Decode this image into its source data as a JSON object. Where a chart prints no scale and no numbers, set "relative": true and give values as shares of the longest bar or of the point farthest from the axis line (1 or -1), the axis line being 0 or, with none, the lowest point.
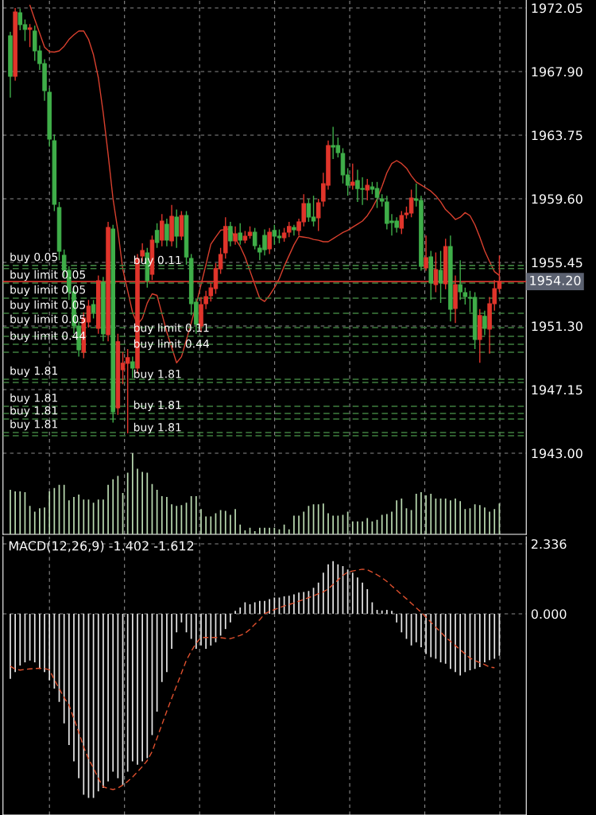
{
  "chart_data": [
    {
      "type": "candlestick",
      "categories": [
        null,
        null,
        null,
        null,
        null,
        null,
        null,
        null,
        null,
        null,
        null,
        null,
        null,
        null,
        null,
        null,
        null,
        null,
        null,
        null,
        null,
        null,
        null,
        null,
        null,
        null,
        null,
        null,
        null,
        null,
        null,
        null,
        null,
        null,
        null,
        null,
        null,
        null,
        null,
        null,
        null,
        null,
        null,
        null,
        null,
        null,
        null,
        null,
        null,
        null,
        null,
        null,
        null,
        null,
        null,
        null,
        null,
        null,
        null,
        null,
        null,
        null,
        null,
        null,
        null,
        null,
        null,
        null,
        null,
        null,
        null,
        null,
        null,
        null,
        null,
        null,
        null,
        null,
        null,
        null,
        null,
        null,
        null,
        null,
        null,
        null,
        null,
        null,
        null,
        null,
        null,
        null,
        null,
        null,
        null,
        null,
        null,
        null,
        null,
        null,
        null
      ],
      "ohlc": [
        [
          1970.23,
          1970.5,
          1966.2,
          1967.59
        ],
        [
          1967.59,
          1972.05,
          1967.3,
          1971.79
        ],
        [
          1971.74,
          1972.0,
          1970.6,
          1970.96
        ],
        [
          1970.96,
          1971.3,
          1969.9,
          1970.65
        ],
        [
          1970.65,
          1971.0,
          1969.5,
          1970.75
        ],
        [
          1970.54,
          1970.9,
          1968.6,
          1969.25
        ],
        [
          1969.25,
          1969.6,
          1968.0,
          1968.42
        ],
        [
          1968.42,
          1968.7,
          1966.0,
          1966.66
        ],
        [
          1966.55,
          1966.8,
          1963.0,
          1963.49
        ],
        [
          1963.39,
          1963.8,
          1958.8,
          1959.24
        ],
        [
          1959.03,
          1959.4,
          1955.6,
          1956.18
        ],
        [
          1955.92,
          1956.3,
          1954.5,
          1954.93
        ],
        [
          1954.93,
          1955.2,
          1953.0,
          1953.53
        ],
        [
          1953.53,
          1953.9,
          1950.8,
          1951.3
        ],
        [
          1951.3,
          1951.6,
          1949.3,
          1949.75
        ],
        [
          1949.59,
          1952.2,
          1949.2,
          1951.82
        ],
        [
          1951.56,
          1953.0,
          1951.2,
          1952.6
        ],
        [
          1952.7,
          1953.0,
          1951.8,
          1952.18
        ],
        [
          1951.15,
          1954.6,
          1950.8,
          1954.26
        ],
        [
          1954.16,
          1954.5,
          1950.3,
          1950.78
        ],
        [
          1950.73,
          1958.1,
          1950.3,
          1957.73
        ],
        [
          1957.63,
          1957.9,
          1945.0,
          1945.7
        ],
        [
          1945.96,
          1950.8,
          1945.5,
          1950.27
        ],
        [
          1948.45,
          1949.6,
          1947.5,
          1948.87
        ],
        [
          1948.87,
          1949.8,
          1944.3,
          1949.23
        ],
        [
          1948.97,
          1949.3,
          1947.9,
          1948.55
        ],
        [
          1948.55,
          1956.0,
          1948.2,
          1955.71
        ],
        [
          1955.87,
          1956.7,
          1955.5,
          1956.23
        ],
        [
          1956.07,
          1956.4,
          1953.8,
          1954.26
        ],
        [
          1954.67,
          1957.2,
          1954.3,
          1956.9
        ],
        [
          1957.53,
          1958.0,
          1956.4,
          1956.75
        ],
        [
          1956.9,
          1958.6,
          1956.5,
          1958.15
        ],
        [
          1957.94,
          1958.3,
          1956.5,
          1956.9
        ],
        [
          1956.85,
          1959.2,
          1956.5,
          1958.46
        ],
        [
          1958.41,
          1958.9,
          1956.4,
          1957.16
        ],
        [
          1957.16,
          1958.8,
          1956.9,
          1958.51
        ],
        [
          1958.51,
          1958.8,
          1955.3,
          1955.81
        ],
        [
          1955.71,
          1956.0,
          1952.0,
          1952.75
        ],
        [
          1952.86,
          1953.1,
          1950.8,
          1951.41
        ],
        [
          1951.3,
          1953.2,
          1950.9,
          1952.7
        ],
        [
          1952.75,
          1953.6,
          1952.4,
          1953.22
        ],
        [
          1953.27,
          1954.1,
          1952.9,
          1953.79
        ],
        [
          1953.74,
          1955.4,
          1953.4,
          1955.04
        ],
        [
          1955.04,
          1956.4,
          1954.7,
          1955.97
        ],
        [
          1956.07,
          1958.4,
          1955.7,
          1957.79
        ],
        [
          1957.79,
          1958.1,
          1956.5,
          1956.85
        ],
        [
          1956.85,
          1957.8,
          1956.6,
          1957.32
        ],
        [
          1957.37,
          1958.0,
          1956.6,
          1956.9
        ],
        [
          1956.9,
          1957.5,
          1956.7,
          1957.16
        ],
        [
          1957.21,
          1957.8,
          1957.0,
          1957.42
        ],
        [
          1957.42,
          1957.7,
          1956.3,
          1956.54
        ],
        [
          1956.38,
          1956.6,
          1955.6,
          1956.13
        ],
        [
          1957.21,
          1957.6,
          1955.9,
          1956.28
        ],
        [
          1956.33,
          1957.7,
          1956.0,
          1957.42
        ],
        [
          1957.53,
          1957.9,
          1956.6,
          1957.16
        ],
        [
          1957.16,
          1957.6,
          1956.7,
          1957.06
        ],
        [
          1957.06,
          1957.7,
          1956.8,
          1957.37
        ],
        [
          1957.42,
          1958.1,
          1957.1,
          1957.79
        ],
        [
          1957.73,
          1957.9,
          1957.2,
          1957.58
        ],
        [
          1957.53,
          1958.3,
          1957.2,
          1958.1
        ],
        [
          1958.1,
          1959.9,
          1957.8,
          1959.29
        ],
        [
          1959.29,
          1959.6,
          1958.1,
          1958.41
        ],
        [
          1958.41,
          1959.8,
          1957.8,
          1958.15
        ],
        [
          1958.36,
          1959.6,
          1957.5,
          1959.34
        ],
        [
          1959.45,
          1961.3,
          1959.1,
          1960.59
        ],
        [
          1960.48,
          1963.4,
          1960.2,
          1963.08
        ],
        [
          1963.08,
          1964.3,
          1962.2,
          1962.97
        ],
        [
          1963.08,
          1963.6,
          1962.3,
          1962.61
        ],
        [
          1962.56,
          1962.9,
          1960.6,
          1961.16
        ],
        [
          1961.16,
          1961.6,
          1959.8,
          1960.48
        ],
        [
          1960.48,
          1961.9,
          1960.2,
          1960.69
        ],
        [
          1960.79,
          1961.5,
          1959.4,
          1960.27
        ],
        [
          1960.27,
          1961.0,
          1959.2,
          1960.22
        ],
        [
          1960.17,
          1960.9,
          1959.5,
          1960.48
        ],
        [
          1960.38,
          1960.7,
          1959.9,
          1960.22
        ],
        [
          1960.27,
          1960.7,
          1959.0,
          1959.7
        ],
        [
          1959.6,
          1959.9,
          1959.1,
          1959.45
        ],
        [
          1959.39,
          1959.8,
          1957.6,
          1957.99
        ],
        [
          1958.15,
          1958.6,
          1957.2,
          1958.05
        ],
        [
          1958.15,
          1958.4,
          1957.4,
          1957.73
        ],
        [
          1957.68,
          1958.8,
          1957.3,
          1958.51
        ],
        [
          1958.57,
          1959.1,
          1958.3,
          1958.67
        ],
        [
          1958.67,
          1960.2,
          1958.4,
          1959.65
        ],
        [
          1959.6,
          1960.6,
          1959.1,
          1959.5
        ],
        [
          1959.5,
          1959.8,
          1954.9,
          1955.19
        ],
        [
          1955.09,
          1957.2,
          1954.9,
          1955.76
        ],
        [
          1955.81,
          1956.2,
          1953.0,
          1954.1
        ],
        [
          1954.0,
          1956.1,
          1953.5,
          1954.98
        ],
        [
          1954.93,
          1956.2,
          1952.8,
          1954.1
        ],
        [
          1954.05,
          1957.0,
          1953.7,
          1956.49
        ],
        [
          1956.49,
          1957.2,
          1951.6,
          1952.39
        ],
        [
          1952.44,
          1954.6,
          1951.5,
          1954.0
        ],
        [
          1954.0,
          1955.6,
          1953.0,
          1953.53
        ],
        [
          1953.48,
          1953.8,
          1952.7,
          1953.22
        ],
        [
          1953.17,
          1953.6,
          1952.2,
          1953.12
        ],
        [
          1953.17,
          1953.5,
          1949.8,
          1950.42
        ],
        [
          1950.42,
          1952.4,
          1948.9,
          1951.98
        ],
        [
          1951.93,
          1952.3,
          1950.7,
          1951.15
        ],
        [
          1951.1,
          1953.2,
          1949.5,
          1952.75
        ],
        [
          1952.75,
          1954.3,
          1952.3,
          1953.74
        ],
        [
          1953.74,
          1955.9,
          1953.5,
          1954.21
        ]
      ],
      "colors": [
        "#3fae49",
        "#e0352b",
        "#3fae49",
        "#3fae49",
        "#e0352b",
        "#3fae49",
        "#3fae49",
        "#3fae49",
        "#3fae49",
        "#3fae49",
        "#3fae49",
        "#3fae49",
        "#3fae49",
        "#3fae49",
        "#3fae49",
        "#e0352b",
        "#e0352b",
        "#3fae49",
        "#e0352b",
        "#3fae49",
        "#e0352b",
        "#3fae49",
        "#e0352b",
        "#e0352b",
        "#e0352b",
        "#3fae49",
        "#e0352b",
        "#e0352b",
        "#3fae49",
        "#e0352b",
        "#3fae49",
        "#e0352b",
        "#3fae49",
        "#e0352b",
        "#3fae49",
        "#e0352b",
        "#3fae49",
        "#3fae49",
        "#3fae49",
        "#e0352b",
        "#e0352b",
        "#e0352b",
        "#e0352b",
        "#e0352b",
        "#e0352b",
        "#3fae49",
        "#e0352b",
        "#3fae49",
        "#e0352b",
        "#e0352b",
        "#3fae49",
        "#3fae49",
        "#3fae49",
        "#e0352b",
        "#3fae49",
        "#3fae49",
        "#e0352b",
        "#e0352b",
        "#3fae49",
        "#e0352b",
        "#e0352b",
        "#3fae49",
        "#3fae49",
        "#e0352b",
        "#e0352b",
        "#e0352b",
        "#3fae49",
        "#3fae49",
        "#3fae49",
        "#3fae49",
        "#e0352b",
        "#3fae49",
        "#3fae49",
        "#e0352b",
        "#3fae49",
        "#3fae49",
        "#3fae49",
        "#3fae49",
        "#3fae49",
        "#3fae49",
        "#e0352b",
        "#e0352b",
        "#e0352b",
        "#3fae49",
        "#3fae49",
        "#e0352b",
        "#3fae49",
        "#e0352b",
        "#3fae49",
        "#e0352b",
        "#3fae49",
        "#e0352b",
        "#3fae49",
        "#3fae49",
        "#3fae49",
        "#3fae49",
        "#e0352b",
        "#3fae49",
        "#e0352b",
        "#e0352b",
        "#e0352b"
      ],
      "series": [
        {
          "type": "line",
          "color": "#d9402e",
          "values": [
            null,
            null,
            null,
            null,
            1972.23,
            1971.3,
            1970.4,
            1969.5,
            1969.2,
            1969.17,
            1969.25,
            1969.55,
            1970.0,
            1970.3,
            1970.55,
            1970.55,
            1970.0,
            1969.0,
            1967.5,
            1965.2,
            1962.5,
            1959.6,
            1957.5,
            1955.0,
            1953.6,
            1952.18,
            1951.4,
            1951.8,
            1952.8,
            1953.4,
            1953.3,
            1952.1,
            1950.9,
            1949.9,
            1948.9,
            1949.3,
            1950.4,
            1951.5,
            1952.7,
            1954.0,
            1955.3,
            1956.64,
            1957.1,
            1957.55,
            1957.6,
            1957.65,
            1957.0,
            1956.5,
            1955.8,
            1954.9,
            1954.0,
            1953.1,
            1952.9,
            1953.3,
            1953.8,
            1954.4,
            1955.2,
            1955.9,
            1956.6,
            1957.15,
            1957.1,
            1957.05,
            1956.95,
            1956.9,
            1956.8,
            1956.8,
            1957.0,
            1957.2,
            1957.4,
            1957.55,
            1957.75,
            1957.95,
            1958.15,
            1958.5,
            1959.0,
            1959.6,
            1960.4,
            1961.3,
            1961.9,
            1962.09,
            1961.9,
            1961.6,
            1961.1,
            1960.7,
            1960.5,
            1960.3,
            1960.1,
            1959.8,
            1959.4,
            1958.9,
            1958.6,
            1958.25,
            1958.4,
            1958.7,
            1958.5,
            1957.9,
            1957.1,
            1956.2,
            1955.5,
            1954.85,
            1954.6
          ]
        }
      ],
      "ylim": [
        1937.71,
        1972.57
      ],
      "yticks": [
        {
          "value": 1972.05,
          "label": "1972.05"
        },
        {
          "value": 1967.9,
          "label": "1967.90"
        },
        {
          "value": 1963.75,
          "label": "1963.75"
        },
        {
          "value": 1959.6,
          "label": "1959.60"
        },
        {
          "value": 1955.45,
          "label": "1955.45"
        },
        {
          "value": 1951.3,
          "label": "1951.30"
        },
        {
          "value": 1947.15,
          "label": "1947.15"
        },
        {
          "value": 1943.0,
          "label": "1943.00"
        }
      ],
      "grid": "y",
      "tick_labels": "y",
      "ref_lines": [
        {
          "axis": "y",
          "value": 1954.2,
          "label": "1954.20",
          "color": "#d0342c",
          "line_style": "solid"
        },
        {
          "axis": "y",
          "value": 1955.25,
          "label": "buy 0.05",
          "color": "#3f7f3f",
          "line_style": "dashed"
        },
        {
          "axis": "y",
          "value": 1955.05,
          "label": "buy 0.11",
          "color": "#3f7f3f",
          "line_style": "dashed"
        },
        {
          "axis": "y",
          "value": 1954.1,
          "label": "buy limit 0.05",
          "color": "#3f7f3f",
          "line_style": "dashed"
        },
        {
          "axis": "y",
          "value": 1953.12,
          "label": "buy limit 0.05",
          "color": "#3f7f3f",
          "line_style": "dashed"
        },
        {
          "axis": "y",
          "value": 1952.13,
          "label": "buy limit 0.05",
          "color": "#3f7f3f",
          "line_style": "dashed"
        },
        {
          "axis": "y",
          "value": 1951.2,
          "label": "buy limit 0.05",
          "color": "#3f7f3f",
          "line_style": "dashed"
        },
        {
          "axis": "y",
          "value": 1950.63,
          "label": "buy limit 0.11",
          "color": "#3f7f3f",
          "line_style": "dashed"
        },
        {
          "axis": "y",
          "value": 1950.11,
          "label": "buy limit 0.44",
          "color": "#3f7f3f",
          "line_style": "dashed"
        },
        {
          "axis": "y",
          "value": 1949.59,
          "label": "buy limit 0.44",
          "color": "#3f7f3f",
          "line_style": "dashed"
        },
        {
          "axis": "y",
          "value": 1947.83,
          "label": "buy 1.81",
          "color": "#3f7f3f",
          "line_style": "dashed"
        },
        {
          "axis": "y",
          "value": 1947.62,
          "label": "buy 1.81",
          "color": "#3f7f3f",
          "line_style": "dashed"
        },
        {
          "axis": "y",
          "value": 1946.06,
          "label": "buy 1.81",
          "color": "#3f7f3f",
          "line_style": "dashed"
        },
        {
          "axis": "y",
          "value": 1945.6,
          "label": "buy 1.81",
          "color": "#3f7f3f",
          "line_style": "dashed"
        },
        {
          "axis": "y",
          "value": 1945.23,
          "label": "buy 1.81",
          "color": "#3f7f3f",
          "line_style": "dashed"
        },
        {
          "axis": "y",
          "value": 1944.35,
          "label": "buy 1.81",
          "color": "#3f7f3f",
          "line_style": "dashed"
        },
        {
          "axis": "y",
          "value": 1944.14,
          "label": "buy 1.81",
          "color": "#3f7f3f",
          "line_style": "dashed"
        }
      ]
    },
    {
      "type": "bar",
      "relative": true,
      "tick_labels": false,
      "color": "#b9d9b0",
      "categories": [
        null,
        null,
        null,
        null,
        null,
        null,
        null,
        null,
        null,
        null,
        null,
        null,
        null,
        null,
        null,
        null,
        null,
        null,
        null,
        null,
        null,
        null,
        null,
        null,
        null,
        null,
        null,
        null,
        null,
        null,
        null,
        null,
        null,
        null,
        null,
        null,
        null,
        null,
        null,
        null,
        null,
        null,
        null,
        null,
        null,
        null,
        null,
        null,
        null,
        null,
        null,
        null,
        null,
        null,
        null,
        null,
        null,
        null,
        null,
        null,
        null,
        null,
        null,
        null,
        null,
        null,
        null,
        null,
        null,
        null,
        null,
        null,
        null,
        null,
        null,
        null,
        null,
        null,
        null,
        null,
        null,
        null,
        null,
        null,
        null,
        null,
        null,
        null,
        null,
        null,
        null,
        null,
        null,
        null,
        null,
        null,
        null,
        null,
        null,
        null,
        null
      ],
      "values": [
        0.55,
        0.53,
        0.53,
        0.52,
        0.35,
        0.28,
        0.32,
        0.33,
        0.53,
        0.57,
        0.61,
        0.61,
        0.42,
        0.46,
        0.49,
        0.43,
        0.43,
        0.39,
        0.43,
        0.43,
        0.61,
        0.68,
        0.72,
        0.51,
        0.76,
        1.0,
        0.81,
        0.77,
        0.76,
        0.62,
        0.55,
        0.47,
        0.46,
        0.37,
        0.35,
        0.36,
        0.39,
        0.47,
        0.47,
        0.31,
        0.22,
        0.22,
        0.26,
        0.3,
        0.29,
        0.24,
        0.31,
        0.12,
        0.05,
        0.08,
        0.04,
        0.08,
        0.08,
        0.08,
        0.08,
        0.06,
        0.12,
        0.06,
        0.23,
        0.23,
        0.28,
        0.35,
        0.37,
        0.37,
        0.38,
        0.26,
        0.23,
        0.23,
        0.24,
        0.28,
        0.16,
        0.16,
        0.16,
        0.2,
        0.16,
        0.18,
        0.24,
        0.25,
        0.28,
        0.42,
        0.44,
        0.32,
        0.3,
        0.5,
        0.52,
        0.48,
        0.5,
        0.44,
        0.44,
        0.44,
        0.42,
        0.44,
        0.41,
        0.31,
        0.32,
        0.37,
        0.36,
        0.33,
        0.28,
        0.31,
        0.38
      ]
    },
    {
      "type": "bar",
      "title": "MACD(12,26,9) -1.402 -1.612",
      "color": "#e6e6e6",
      "categories": [
        null,
        null,
        null,
        null,
        null,
        null,
        null,
        null,
        null,
        null,
        null,
        null,
        null,
        null,
        null,
        null,
        null,
        null,
        null,
        null,
        null,
        null,
        null,
        null,
        null,
        null,
        null,
        null,
        null,
        null,
        null,
        null,
        null,
        null,
        null,
        null,
        null,
        null,
        null,
        null,
        null,
        null,
        null,
        null,
        null,
        null,
        null,
        null,
        null,
        null,
        null,
        null,
        null,
        null,
        null,
        null,
        null,
        null,
        null,
        null,
        null,
        null,
        null,
        null,
        null,
        null,
        null,
        null,
        null,
        null,
        null,
        null,
        null,
        null,
        null,
        null,
        null,
        null,
        null,
        null,
        null,
        null,
        null,
        null,
        null,
        null,
        null,
        null,
        null,
        null,
        null,
        null,
        null,
        null,
        null,
        null,
        null,
        null,
        null,
        null,
        null
      ],
      "values": [
        -2.17,
        -1.95,
        -1.73,
        -1.62,
        -1.56,
        -1.62,
        -1.84,
        -1.95,
        -2.22,
        -2.5,
        -2.94,
        -3.66,
        -4.38,
        -4.93,
        -5.49,
        -6.04,
        -6.15,
        -6.15,
        -5.93,
        -5.82,
        -5.6,
        -5.27,
        -5.49,
        -5.71,
        -5.27,
        -4.93,
        -5.04,
        -4.93,
        -4.82,
        -4.05,
        -3.27,
        -2.28,
        -1.95,
        -1.17,
        -0.62,
        -0.29,
        -0.62,
        -0.84,
        -1.17,
        -1.06,
        -1.17,
        -1.06,
        -0.95,
        -0.73,
        -0.51,
        -0.29,
        0.1,
        0.21,
        0.38,
        0.32,
        0.38,
        0.43,
        0.43,
        0.49,
        0.54,
        0.54,
        0.58,
        0.6,
        0.65,
        0.71,
        0.73,
        0.76,
        0.87,
        1.04,
        1.37,
        1.65,
        1.76,
        1.65,
        1.59,
        1.48,
        1.37,
        1.21,
        1.04,
        0.82,
        0.38,
        0.13,
        0.11,
        0.13,
        0.1,
        -0.29,
        -0.62,
        -0.84,
        -1.06,
        -0.95,
        -1.12,
        -1.34,
        -1.45,
        -1.5,
        -1.62,
        -1.67,
        -1.84,
        -1.95,
        -2.06,
        -1.95,
        -1.89,
        -1.84,
        -1.78,
        -1.62,
        -1.55,
        -1.5,
        -1.4
      ],
      "series": [
        {
          "type": "line",
          "color": "#e0502e",
          "line_style": "dashed",
          "values": [
            -1.75,
            -1.85,
            -1.88,
            -1.86,
            -1.84,
            -1.83,
            -1.82,
            -1.83,
            -1.87,
            -2.2,
            -2.5,
            -2.8,
            -3.05,
            -3.5,
            -3.95,
            -4.45,
            -4.85,
            -5.15,
            -5.5,
            -5.78,
            -5.83,
            -5.87,
            -5.82,
            -5.72,
            -5.6,
            -5.45,
            -5.28,
            -5.1,
            -4.9,
            -4.6,
            -4.15,
            -3.7,
            -3.25,
            -2.82,
            -2.4,
            -1.98,
            -1.55,
            -1.25,
            -0.98,
            -0.79,
            -0.79,
            -0.79,
            -0.79,
            -0.8,
            -0.82,
            -0.83,
            -0.78,
            -0.72,
            -0.65,
            -0.52,
            -0.35,
            -0.2,
            0.0,
            0.08,
            0.14,
            0.2,
            0.26,
            0.31,
            0.36,
            0.42,
            0.48,
            0.54,
            0.6,
            0.67,
            0.73,
            0.83,
            0.98,
            1.13,
            1.28,
            1.39,
            1.43,
            1.46,
            1.49,
            1.47,
            1.39,
            1.3,
            1.2,
            1.08,
            0.93,
            0.79,
            0.64,
            0.5,
            0.35,
            0.2,
            0.05,
            -0.11,
            -0.28,
            -0.45,
            -0.61,
            -0.78,
            -0.92,
            -1.06,
            -1.2,
            -1.34,
            -1.48,
            -1.56,
            -1.63,
            -1.7,
            -1.78,
            -1.8,
            null
          ]
        }
      ],
      "ylim": [
        -6.72,
        2.575
      ],
      "yticks": [
        {
          "value": 2.336,
          "label": "2.336"
        },
        {
          "value": 0,
          "label": "0.000"
        }
      ],
      "grid": "y",
      "tick_labels": "y"
    }
  ]
}
